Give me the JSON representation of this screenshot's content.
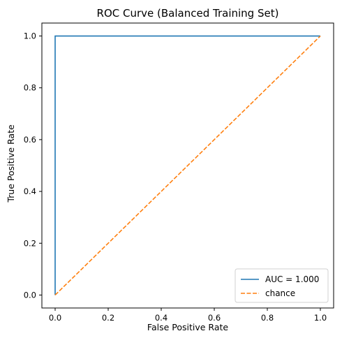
{
  "chart_data": {
    "type": "line",
    "title": "ROC Curve (Balanced Training Set)",
    "xlabel": "False Positive Rate",
    "ylabel": "True Positive Rate",
    "xlim": [
      -0.05,
      1.05
    ],
    "ylim": [
      -0.05,
      1.05
    ],
    "xticks": [
      0.0,
      0.2,
      0.4,
      0.6,
      0.8,
      1.0
    ],
    "yticks": [
      0.0,
      0.2,
      0.4,
      0.6,
      0.8,
      1.0
    ],
    "xtick_labels": [
      "0.0",
      "0.2",
      "0.4",
      "0.6",
      "0.8",
      "1.0"
    ],
    "ytick_labels": [
      "0.0",
      "0.2",
      "0.4",
      "0.6",
      "0.8",
      "1.0"
    ],
    "grid": false,
    "legend_position": "bottom-right",
    "series": [
      {
        "name": "AUC = 1.000",
        "style": "solid",
        "color": "#1f77b4",
        "x": [
          0.0,
          0.0,
          1.0
        ],
        "y": [
          0.0,
          1.0,
          1.0
        ]
      },
      {
        "name": "chance",
        "style": "dashed",
        "color": "#ff7f0e",
        "x": [
          0.0,
          1.0
        ],
        "y": [
          0.0,
          1.0
        ]
      }
    ]
  }
}
